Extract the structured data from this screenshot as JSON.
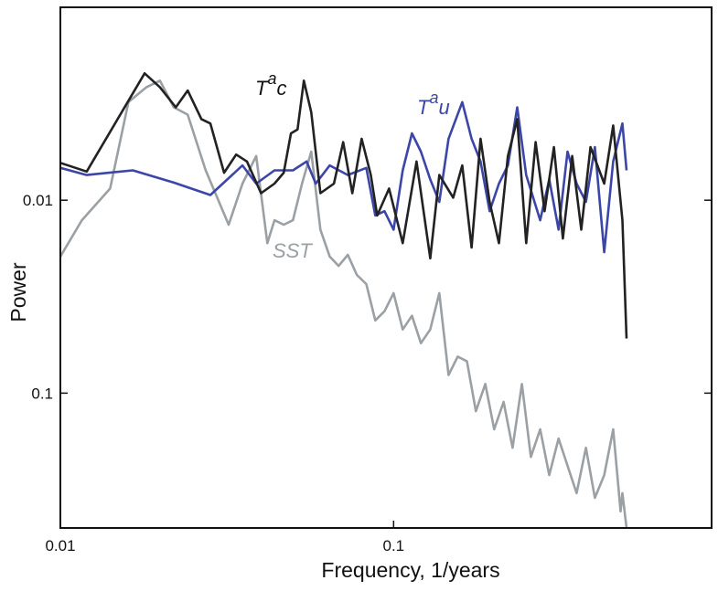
{
  "chart_data": {
    "type": "line",
    "log_x": true,
    "log_y": true,
    "xlabel": "Frequency, 1/years",
    "ylabel": "Power",
    "xlim": [
      0.01,
      0.9
    ],
    "ylim": [
      0.5,
      0.001
    ],
    "xticks": [
      0.01,
      0.1
    ],
    "yticks": [
      0.01,
      0.1
    ],
    "series": [
      {
        "label": {
          "base": "SST"
        },
        "color": "#9aa0a4",
        "x": [
          0.01,
          0.0116,
          0.0141,
          0.016,
          0.0181,
          0.0199,
          0.0219,
          0.0241,
          0.0273,
          0.032,
          0.0352,
          0.0387,
          0.0418,
          0.0439,
          0.0468,
          0.0499,
          0.0531,
          0.0566,
          0.0603,
          0.0643,
          0.0684,
          0.0729,
          0.0776,
          0.0828,
          0.0881,
          0.0939,
          0.1,
          0.1065,
          0.1135,
          0.1208,
          0.1288,
          0.1371,
          0.1462,
          0.1557,
          0.166,
          0.1766,
          0.1884,
          0.2004,
          0.2138,
          0.2275,
          0.2427,
          0.2582,
          0.2754,
          0.2931,
          0.3126,
          0.3327,
          0.354,
          0.3776,
          0.4018,
          0.4285,
          0.456,
          0.48,
          0.486,
          0.5
        ],
        "values": [
          0.0196,
          0.0127,
          0.0087,
          0.0031,
          0.0026,
          0.0024,
          0.0033,
          0.0036,
          0.007,
          0.0134,
          0.0082,
          0.0059,
          0.0167,
          0.0127,
          0.0134,
          0.0127,
          0.0082,
          0.0056,
          0.0142,
          0.0196,
          0.0219,
          0.0192,
          0.0244,
          0.0272,
          0.042,
          0.0376,
          0.0303,
          0.0468,
          0.0397,
          0.0551,
          0.0468,
          0.0303,
          0.0805,
          0.0647,
          0.0684,
          0.124,
          0.0897,
          0.154,
          0.111,
          0.192,
          0.0897,
          0.214,
          0.154,
          0.266,
          0.172,
          0.238,
          0.33,
          0.192,
          0.349,
          0.266,
          0.154,
          0.41,
          0.33,
          0.5
        ]
      },
      {
        "label": {
          "base": "T",
          "sup": "a",
          "sub": "u"
        },
        "color": "#3b46a8",
        "x": [
          0.01,
          0.012,
          0.0165,
          0.0219,
          0.0282,
          0.0352,
          0.0387,
          0.0439,
          0.0499,
          0.0548,
          0.0584,
          0.0643,
          0.0729,
          0.0828,
          0.0881,
          0.0939,
          0.1,
          0.1065,
          0.1135,
          0.1208,
          0.1288,
          0.1371,
          0.1462,
          0.1607,
          0.1714,
          0.1824,
          0.1941,
          0.207,
          0.2203,
          0.235,
          0.25,
          0.2754,
          0.2931,
          0.3126,
          0.3327,
          0.354,
          0.3776,
          0.4018,
          0.4285,
          0.456,
          0.486,
          0.5
        ],
        "values": [
          0.0068,
          0.0074,
          0.007,
          0.0081,
          0.0094,
          0.0066,
          0.0082,
          0.007,
          0.007,
          0.0063,
          0.0082,
          0.0066,
          0.0074,
          0.0068,
          0.012,
          0.0114,
          0.0142,
          0.007,
          0.0045,
          0.0056,
          0.0078,
          0.0102,
          0.0048,
          0.0031,
          0.0048,
          0.0063,
          0.0114,
          0.0082,
          0.0066,
          0.0033,
          0.0074,
          0.0127,
          0.0078,
          0.0142,
          0.0056,
          0.0082,
          0.0102,
          0.0053,
          0.0186,
          0.0063,
          0.004,
          0.007
        ]
      },
      {
        "label": {
          "base": "T",
          "sup": "a",
          "sub": "c"
        },
        "color": "#222222",
        "x": [
          0.01,
          0.012,
          0.0179,
          0.0199,
          0.0222,
          0.0241,
          0.0265,
          0.0282,
          0.031,
          0.0337,
          0.0363,
          0.04,
          0.0439,
          0.0468,
          0.0492,
          0.0515,
          0.0538,
          0.0566,
          0.0603,
          0.0662,
          0.0706,
          0.0752,
          0.0802,
          0.0854,
          0.0893,
          0.0969,
          0.1065,
          0.1172,
          0.1288,
          0.1371,
          0.151,
          0.1607,
          0.1714,
          0.1824,
          0.1941,
          0.207,
          0.2203,
          0.235,
          0.25,
          0.2667,
          0.2838,
          0.3027,
          0.3221,
          0.3436,
          0.3656,
          0.3899,
          0.4285,
          0.456,
          0.486,
          0.5
        ],
        "values": [
          0.0064,
          0.0071,
          0.0022,
          0.0026,
          0.0033,
          0.0027,
          0.0038,
          0.004,
          0.0072,
          0.0058,
          0.0063,
          0.0092,
          0.0082,
          0.0072,
          0.0045,
          0.0043,
          0.0024,
          0.0035,
          0.0092,
          0.0082,
          0.005,
          0.0092,
          0.0048,
          0.0074,
          0.012,
          0.0087,
          0.0167,
          0.0063,
          0.02,
          0.0074,
          0.0097,
          0.0066,
          0.0176,
          0.0048,
          0.0102,
          0.0167,
          0.0059,
          0.0038,
          0.0167,
          0.005,
          0.0114,
          0.0053,
          0.0158,
          0.0059,
          0.0142,
          0.0053,
          0.0082,
          0.0041,
          0.0127,
          0.0521
        ]
      }
    ]
  }
}
